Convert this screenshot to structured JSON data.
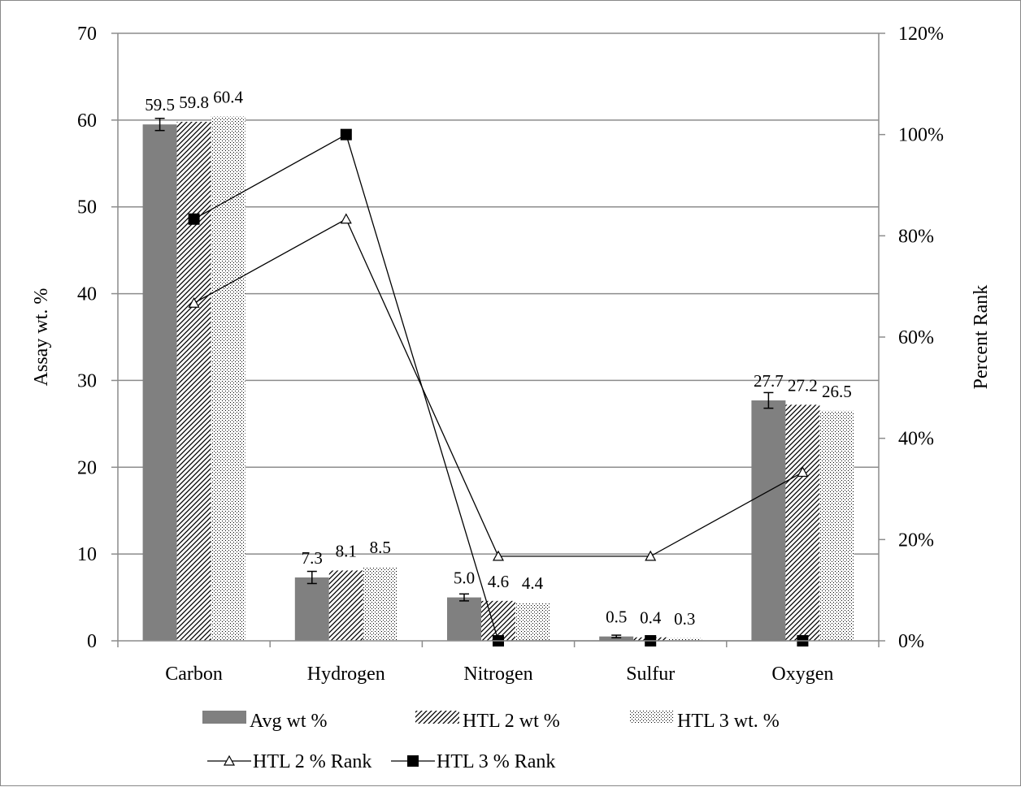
{
  "chart_data": {
    "type": "bar",
    "categories": [
      "Carbon",
      "Hydrogen",
      "Nitrogen",
      "Sulfur",
      "Oxygen"
    ],
    "ylabel": "Assay wt. %",
    "y2label": "Percent Rank",
    "ylim": [
      0,
      70
    ],
    "yticks": [
      "0",
      "10",
      "20",
      "30",
      "40",
      "50",
      "60",
      "70"
    ],
    "y2lim": [
      0,
      1.2
    ],
    "y2ticks": [
      "0%",
      "20%",
      "40%",
      "60%",
      "80%",
      "100%",
      "120%"
    ],
    "grid": true,
    "legend_position": "bottom",
    "bar_series": [
      {
        "name": "Avg wt %",
        "fill": "solid",
        "color": "#808080",
        "values": [
          59.5,
          7.3,
          5.0,
          0.5,
          27.7
        ],
        "labels": [
          "59.5",
          "7.3",
          "5.0",
          "0.5",
          "27.7"
        ],
        "error": [
          0.7,
          0.7,
          0.4,
          0.15,
          0.9
        ]
      },
      {
        "name": "HTL 2 wt %",
        "fill": "diagonal",
        "values": [
          59.8,
          8.1,
          4.6,
          0.4,
          27.2
        ],
        "labels": [
          "59.8",
          "8.1",
          "4.6",
          "0.4",
          "27.2"
        ]
      },
      {
        "name": "HTL 3 wt. %",
        "fill": "dots",
        "values": [
          60.4,
          8.5,
          4.4,
          0.3,
          26.5
        ],
        "labels": [
          "60.4",
          "8.5",
          "4.4",
          "0.3",
          "26.5"
        ]
      }
    ],
    "line_series": [
      {
        "name": "HTL 2 % Rank",
        "marker": "triangle-open",
        "values": [
          0.667,
          0.833,
          0.167,
          0.167,
          0.333
        ]
      },
      {
        "name": "HTL 3 % Rank",
        "marker": "square-filled",
        "values": [
          0.833,
          1.0,
          0.0,
          0.0,
          0.0
        ]
      }
    ]
  }
}
